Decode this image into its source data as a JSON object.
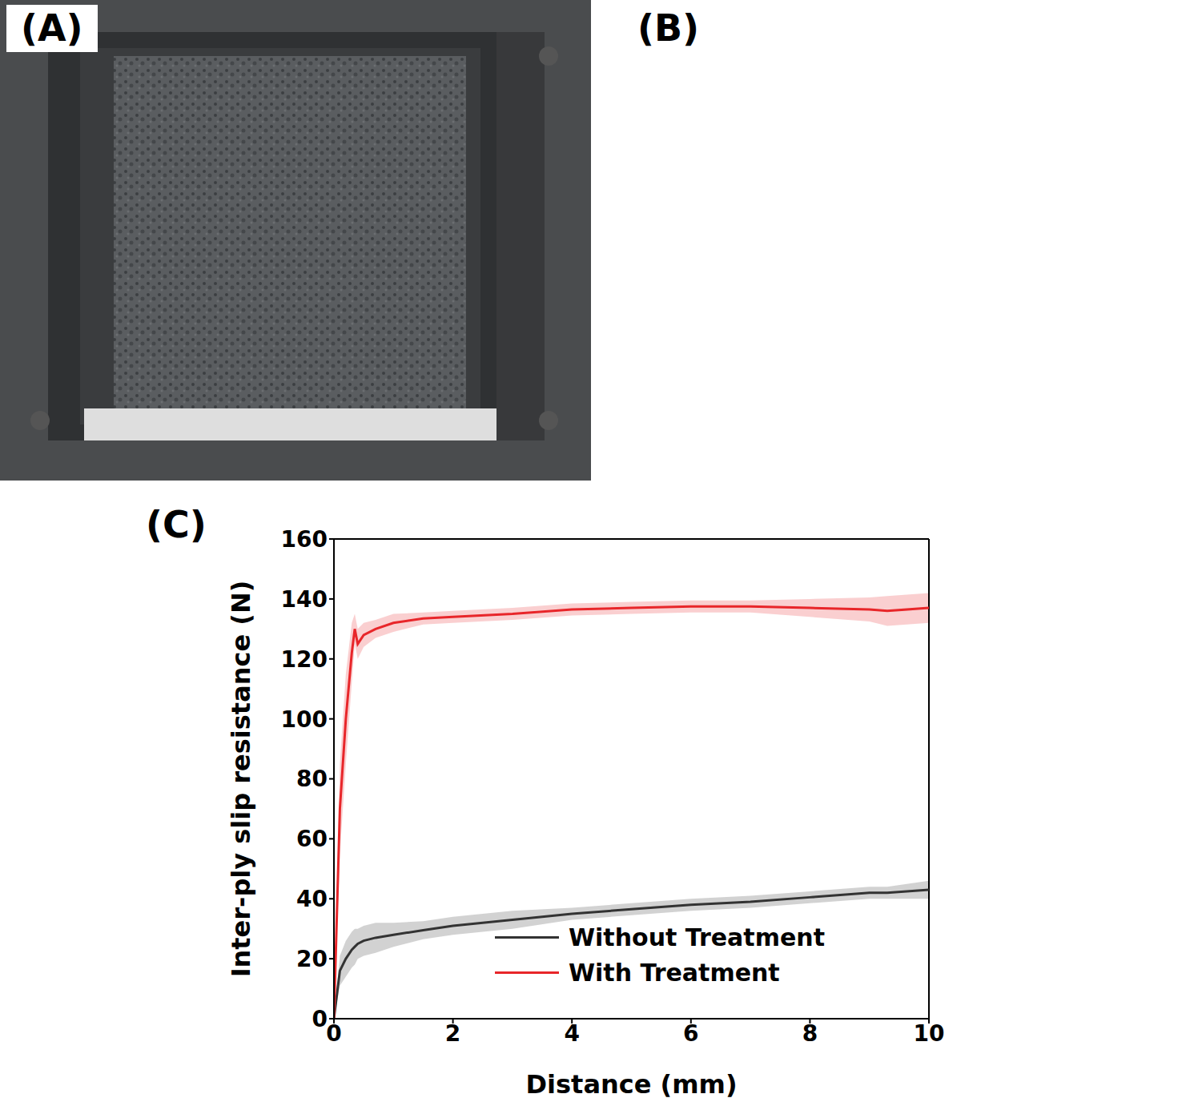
{
  "panels": [
    "(A)",
    "(B)",
    "(C)"
  ],
  "chart_data": {
    "type": "line",
    "x_label": "Distance (mm)",
    "y_label": "Inter-ply slip resistance (N)",
    "x": [
      0,
      0.1,
      0.2,
      0.3,
      0.35,
      0.4,
      0.5,
      0.7,
      1,
      1.5,
      2,
      3,
      4,
      5,
      6,
      7,
      8,
      9,
      9.3,
      10
    ],
    "series": [
      {
        "name": "Without Treatment",
        "color": "#333333",
        "values": [
          0,
          16,
          20,
          23,
          24,
          25,
          26,
          27,
          28,
          29.5,
          31,
          33,
          35,
          36.5,
          38,
          39,
          40.5,
          42,
          42,
          43
        ],
        "error": [
          0,
          5,
          6,
          6,
          6,
          5,
          5,
          5,
          4,
          3,
          3,
          3,
          2,
          2,
          2,
          2,
          2,
          2,
          2,
          3
        ]
      },
      {
        "name": "With Treatment",
        "color": "#e8262a",
        "values": [
          0,
          70,
          100,
          122,
          130,
          125,
          128,
          130,
          132,
          133.5,
          134,
          135,
          136.5,
          137,
          137.5,
          137.5,
          137,
          136.5,
          136,
          137
        ],
        "error": [
          0,
          15,
          15,
          10,
          5,
          5,
          4,
          3,
          3,
          2,
          2,
          2,
          2,
          2,
          2,
          2,
          3,
          4,
          5,
          5
        ]
      }
    ],
    "xlim": [
      0,
      10
    ],
    "xticks": [
      0,
      2,
      4,
      6,
      8,
      10
    ],
    "ylim": [
      0,
      160
    ],
    "yticks": [
      0,
      20,
      40,
      60,
      80,
      100,
      120,
      140,
      160
    ],
    "legend": "lower right"
  }
}
